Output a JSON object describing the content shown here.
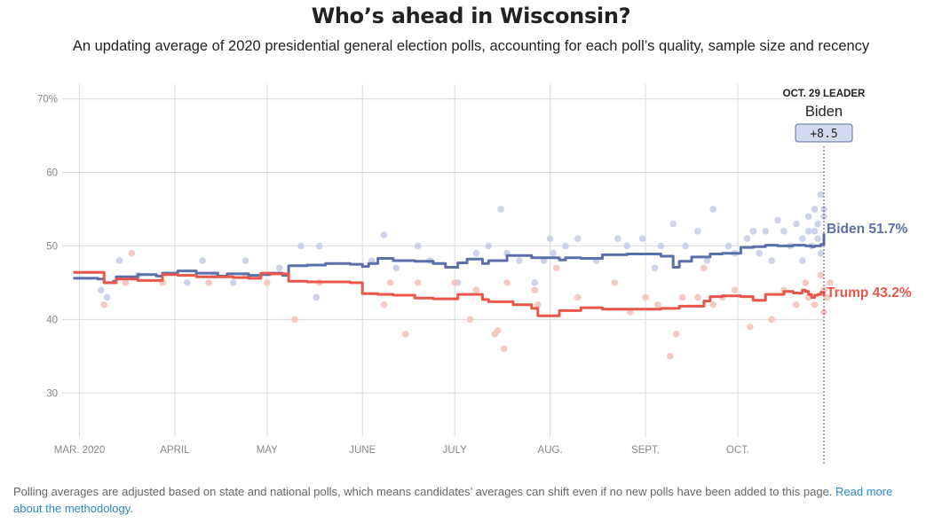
{
  "header": {
    "title": "Who’s ahead in Wisconsin?",
    "subtitle": "An updating average of 2020 presidential general election polls, accounting for each poll’s quality, sample size and recency"
  },
  "leader_box": {
    "heading": "OCT. 29 LEADER",
    "name": "Biden",
    "margin": "+8.5"
  },
  "footer": {
    "note": "Polling averages are adjusted based on state and national polls, which means candidates’ averages can shift even if no new polls have been added to this page. ",
    "link_text": "Read more about the methodology",
    "end": "."
  },
  "colors": {
    "biden": "#5b6fab",
    "trump": "#e9574a",
    "biden_poll": "#c3cbe6",
    "trump_poll": "#f6c0b9",
    "grid": "#d9d9d9",
    "axis_text": "#888888",
    "link": "#2b8ac6"
  },
  "chart_data": {
    "type": "line",
    "x_type": "date",
    "xlim": [
      "2020-02-29",
      "2020-10-29"
    ],
    "ylim": [
      24,
      72
    ],
    "y_ticks": [
      30,
      40,
      50,
      60,
      70
    ],
    "y_tick_labels": [
      "30",
      "40",
      "50",
      "60",
      "70%"
    ],
    "x_ticks": [
      "2020-03-01",
      "2020-04-01",
      "2020-05-01",
      "2020-06-01",
      "2020-07-01",
      "2020-08-01",
      "2020-09-01",
      "2020-10-01"
    ],
    "x_tick_labels": [
      "MAR. 2020",
      "APRIL",
      "MAY",
      "JUNE",
      "JULY",
      "AUG.",
      "SEPT.",
      "OCT."
    ],
    "grid": true,
    "series": [
      {
        "name": "Biden",
        "end_label": "Biden 51.7%",
        "color": "#5b6fab",
        "points": [
          [
            "2020-02-28",
            45.6
          ],
          [
            "2020-03-07",
            45.5
          ],
          [
            "2020-03-09",
            45.0
          ],
          [
            "2020-03-12",
            45.2
          ],
          [
            "2020-03-13",
            45.8
          ],
          [
            "2020-03-20",
            46.1
          ],
          [
            "2020-03-26",
            45.9
          ],
          [
            "2020-03-28",
            46.3
          ],
          [
            "2020-04-02",
            46.6
          ],
          [
            "2020-04-08",
            46.3
          ],
          [
            "2020-04-15",
            45.9
          ],
          [
            "2020-04-18",
            46.2
          ],
          [
            "2020-04-25",
            46.0
          ],
          [
            "2020-04-29",
            46.1
          ],
          [
            "2020-05-02",
            46.3
          ],
          [
            "2020-05-06",
            46.0
          ],
          [
            "2020-05-08",
            47.3
          ],
          [
            "2020-05-14",
            47.4
          ],
          [
            "2020-05-20",
            47.6
          ],
          [
            "2020-05-28",
            47.5
          ],
          [
            "2020-06-01",
            47.2
          ],
          [
            "2020-06-03",
            47.6
          ],
          [
            "2020-06-06",
            48.3
          ],
          [
            "2020-06-11",
            48.0
          ],
          [
            "2020-06-18",
            47.9
          ],
          [
            "2020-06-24",
            47.6
          ],
          [
            "2020-06-28",
            47.1
          ],
          [
            "2020-07-02",
            47.7
          ],
          [
            "2020-07-05",
            48.2
          ],
          [
            "2020-07-10",
            47.6
          ],
          [
            "2020-07-12",
            48.0
          ],
          [
            "2020-07-18",
            48.7
          ],
          [
            "2020-07-26",
            48.4
          ],
          [
            "2020-08-04",
            48.1
          ],
          [
            "2020-08-06",
            48.4
          ],
          [
            "2020-08-11",
            48.3
          ],
          [
            "2020-08-18",
            48.8
          ],
          [
            "2020-08-26",
            48.9
          ],
          [
            "2020-09-06",
            48.6
          ],
          [
            "2020-09-10",
            47.1
          ],
          [
            "2020-09-12",
            47.9
          ],
          [
            "2020-09-16",
            48.5
          ],
          [
            "2020-09-22",
            48.9
          ],
          [
            "2020-09-26",
            49.0
          ],
          [
            "2020-10-02",
            49.8
          ],
          [
            "2020-10-06",
            49.9
          ],
          [
            "2020-10-10",
            50.1
          ],
          [
            "2020-10-14",
            50.0
          ],
          [
            "2020-10-16",
            50.0
          ],
          [
            "2020-10-19",
            50.1
          ],
          [
            "2020-10-22",
            50.1
          ],
          [
            "2020-10-23",
            50.0
          ],
          [
            "2020-10-24",
            50.0
          ],
          [
            "2020-10-25",
            49.9
          ],
          [
            "2020-10-26",
            50.0
          ],
          [
            "2020-10-27",
            50.0
          ],
          [
            "2020-10-28",
            50.2
          ],
          [
            "2020-10-29",
            51.7
          ]
        ]
      },
      {
        "name": "Trump",
        "end_label": "Trump 43.2%",
        "color": "#e9574a",
        "points": [
          [
            "2020-02-28",
            46.4
          ],
          [
            "2020-03-07",
            46.4
          ],
          [
            "2020-03-09",
            45.0
          ],
          [
            "2020-03-13",
            45.5
          ],
          [
            "2020-03-20",
            45.3
          ],
          [
            "2020-03-26",
            45.3
          ],
          [
            "2020-03-28",
            46.1
          ],
          [
            "2020-04-02",
            46.0
          ],
          [
            "2020-04-08",
            45.8
          ],
          [
            "2020-04-15",
            45.8
          ],
          [
            "2020-04-20",
            45.7
          ],
          [
            "2020-04-25",
            45.6
          ],
          [
            "2020-04-29",
            46.3
          ],
          [
            "2020-05-02",
            46.2
          ],
          [
            "2020-05-08",
            45.2
          ],
          [
            "2020-05-14",
            45.1
          ],
          [
            "2020-05-20",
            45.1
          ],
          [
            "2020-05-28",
            45.0
          ],
          [
            "2020-06-01",
            43.5
          ],
          [
            "2020-06-06",
            43.4
          ],
          [
            "2020-06-11",
            43.3
          ],
          [
            "2020-06-18",
            42.9
          ],
          [
            "2020-06-24",
            42.8
          ],
          [
            "2020-06-28",
            42.8
          ],
          [
            "2020-07-02",
            43.4
          ],
          [
            "2020-07-05",
            43.4
          ],
          [
            "2020-07-10",
            42.7
          ],
          [
            "2020-07-12",
            42.4
          ],
          [
            "2020-07-20",
            42.0
          ],
          [
            "2020-07-26",
            41.5
          ],
          [
            "2020-07-28",
            40.5
          ],
          [
            "2020-08-04",
            41.2
          ],
          [
            "2020-08-06",
            41.2
          ],
          [
            "2020-08-11",
            41.6
          ],
          [
            "2020-08-18",
            41.4
          ],
          [
            "2020-08-26",
            41.4
          ],
          [
            "2020-09-06",
            41.5
          ],
          [
            "2020-09-12",
            41.8
          ],
          [
            "2020-09-16",
            41.8
          ],
          [
            "2020-09-20",
            42.5
          ],
          [
            "2020-09-22",
            43.1
          ],
          [
            "2020-09-26",
            43.2
          ],
          [
            "2020-10-02",
            43.1
          ],
          [
            "2020-10-06",
            42.6
          ],
          [
            "2020-10-10",
            43.4
          ],
          [
            "2020-10-14",
            43.4
          ],
          [
            "2020-10-16",
            43.8
          ],
          [
            "2020-10-19",
            43.6
          ],
          [
            "2020-10-22",
            44.0
          ],
          [
            "2020-10-23",
            43.8
          ],
          [
            "2020-10-24",
            43.4
          ],
          [
            "2020-10-25",
            43.0
          ],
          [
            "2020-10-26",
            43.3
          ],
          [
            "2020-10-27",
            43.4
          ],
          [
            "2020-10-28",
            43.7
          ],
          [
            "2020-10-29",
            43.2
          ]
        ]
      }
    ],
    "polls": {
      "Biden": [
        [
          "2020-03-08",
          44
        ],
        [
          "2020-03-10",
          43
        ],
        [
          "2020-03-14",
          48
        ],
        [
          "2020-03-20",
          46
        ],
        [
          "2020-04-05",
          45
        ],
        [
          "2020-04-10",
          48
        ],
        [
          "2020-04-14",
          46
        ],
        [
          "2020-04-20",
          45
        ],
        [
          "2020-04-24",
          48
        ],
        [
          "2020-05-05",
          47
        ],
        [
          "2020-05-12",
          50
        ],
        [
          "2020-05-17",
          43
        ],
        [
          "2020-05-18",
          50
        ],
        [
          "2020-06-04",
          48
        ],
        [
          "2020-06-08",
          51.5
        ],
        [
          "2020-06-12",
          47
        ],
        [
          "2020-06-19",
          50
        ],
        [
          "2020-06-23",
          48
        ],
        [
          "2020-07-02",
          45
        ],
        [
          "2020-07-08",
          49
        ],
        [
          "2020-07-12",
          50
        ],
        [
          "2020-07-16",
          55
        ],
        [
          "2020-07-18",
          49
        ],
        [
          "2020-07-22",
          48
        ],
        [
          "2020-07-27",
          45
        ],
        [
          "2020-07-30",
          48
        ],
        [
          "2020-08-01",
          51
        ],
        [
          "2020-08-02",
          49
        ],
        [
          "2020-08-06",
          50
        ],
        [
          "2020-08-10",
          51
        ],
        [
          "2020-08-16",
          48
        ],
        [
          "2020-08-23",
          51
        ],
        [
          "2020-08-26",
          50
        ],
        [
          "2020-08-31",
          51
        ],
        [
          "2020-09-04",
          47
        ],
        [
          "2020-09-06",
          50
        ],
        [
          "2020-09-10",
          53
        ],
        [
          "2020-09-14",
          50
        ],
        [
          "2020-09-18",
          52
        ],
        [
          "2020-09-21",
          48
        ],
        [
          "2020-09-23",
          55
        ],
        [
          "2020-09-28",
          50
        ],
        [
          "2020-09-30",
          49
        ],
        [
          "2020-10-04",
          51
        ],
        [
          "2020-10-06",
          52
        ],
        [
          "2020-10-08",
          49
        ],
        [
          "2020-10-10",
          52
        ],
        [
          "2020-10-12",
          48
        ],
        [
          "2020-10-14",
          53.5
        ],
        [
          "2020-10-16",
          52
        ],
        [
          "2020-10-18",
          50
        ],
        [
          "2020-10-20",
          53
        ],
        [
          "2020-10-22",
          48
        ],
        [
          "2020-10-22",
          51
        ],
        [
          "2020-10-24",
          52
        ],
        [
          "2020-10-24",
          54
        ],
        [
          "2020-10-25",
          50
        ],
        [
          "2020-10-26",
          52
        ],
        [
          "2020-10-26",
          55
        ],
        [
          "2020-10-27",
          51
        ],
        [
          "2020-10-27",
          53
        ],
        [
          "2020-10-28",
          57
        ],
        [
          "2020-10-28",
          49
        ],
        [
          "2020-10-29",
          54
        ],
        [
          "2020-10-29",
          55
        ]
      ],
      "Trump": [
        [
          "2020-03-09",
          42
        ],
        [
          "2020-03-16",
          45
        ],
        [
          "2020-03-18",
          49
        ],
        [
          "2020-03-28",
          45
        ],
        [
          "2020-04-12",
          45
        ],
        [
          "2020-04-24",
          46
        ],
        [
          "2020-05-01",
          45
        ],
        [
          "2020-05-10",
          40
        ],
        [
          "2020-05-18",
          45
        ],
        [
          "2020-06-08",
          42
        ],
        [
          "2020-06-10",
          45
        ],
        [
          "2020-06-15",
          38
        ],
        [
          "2020-06-19",
          45
        ],
        [
          "2020-07-01",
          45
        ],
        [
          "2020-07-06",
          40
        ],
        [
          "2020-07-08",
          44
        ],
        [
          "2020-07-14",
          38
        ],
        [
          "2020-07-15",
          38.5
        ],
        [
          "2020-07-17",
          36
        ],
        [
          "2020-07-18",
          45
        ],
        [
          "2020-07-27",
          44
        ],
        [
          "2020-07-28",
          42
        ],
        [
          "2020-08-03",
          47
        ],
        [
          "2020-08-10",
          43
        ],
        [
          "2020-08-22",
          45
        ],
        [
          "2020-08-27",
          41
        ],
        [
          "2020-09-01",
          43
        ],
        [
          "2020-09-05",
          42
        ],
        [
          "2020-09-09",
          35
        ],
        [
          "2020-09-11",
          38
        ],
        [
          "2020-09-13",
          43
        ],
        [
          "2020-09-18",
          43
        ],
        [
          "2020-09-20",
          47
        ],
        [
          "2020-09-23",
          42
        ],
        [
          "2020-09-26",
          43
        ],
        [
          "2020-09-30",
          44
        ],
        [
          "2020-10-05",
          39
        ],
        [
          "2020-10-12",
          40
        ],
        [
          "2020-10-16",
          44
        ],
        [
          "2020-10-20",
          42
        ],
        [
          "2020-10-23",
          45
        ],
        [
          "2020-10-24",
          43
        ],
        [
          "2020-10-26",
          42
        ],
        [
          "2020-10-28",
          46
        ],
        [
          "2020-10-29",
          44
        ],
        [
          "2020-10-29",
          41
        ],
        [
          "2020-10-30",
          43
        ],
        [
          "2020-10-31",
          45
        ]
      ]
    }
  }
}
